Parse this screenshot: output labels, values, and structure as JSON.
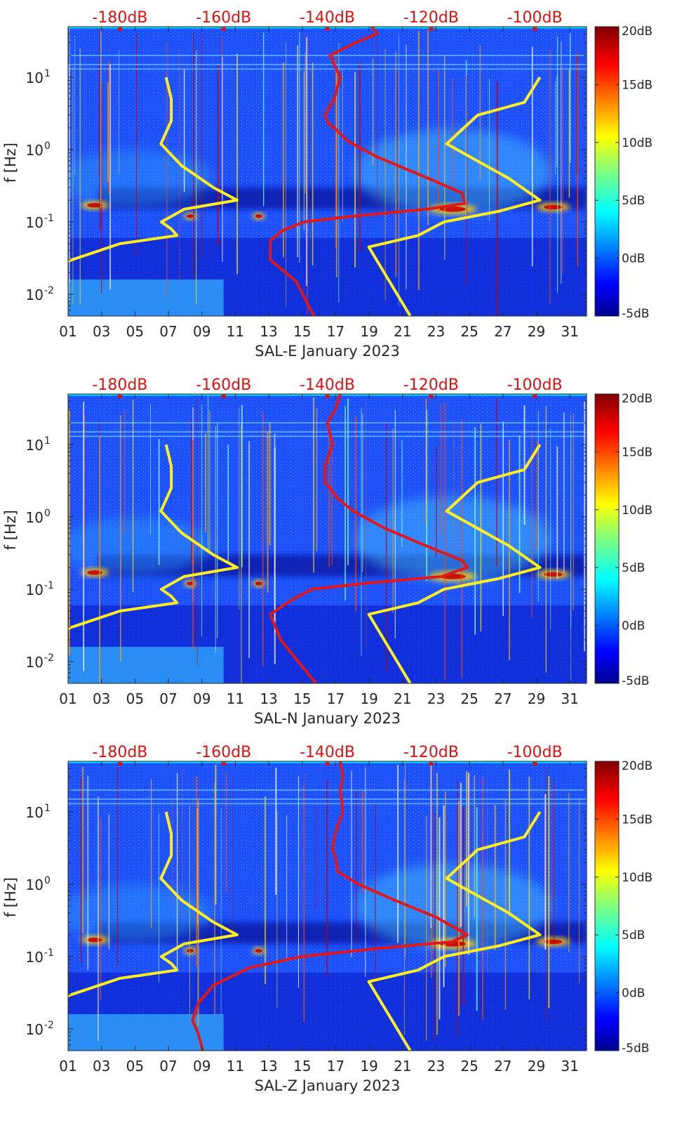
{
  "chart_data": [
    {
      "type": "heatmap",
      "title": "",
      "xlabel": "SAL-E January 2023",
      "ylabel": "f [Hz]",
      "x_ticks": [
        "01",
        "03",
        "05",
        "07",
        "09",
        "11",
        "13",
        "15",
        "17",
        "19",
        "21",
        "23",
        "25",
        "27",
        "29",
        "31"
      ],
      "x_range_days": [
        1,
        32
      ],
      "y_scale": "log",
      "y_range_hz": [
        0.005,
        50
      ],
      "y_ticks": [
        {
          "value": 0.01,
          "base": "10",
          "exp": "-2"
        },
        {
          "value": 0.1,
          "base": "10",
          "exp": "-1"
        },
        {
          "value": 1,
          "base": "10",
          "exp": "0"
        },
        {
          "value": 10,
          "base": "10",
          "exp": "1"
        }
      ],
      "top_axis_labels": [
        "-180dB",
        "-160dB",
        "-140dB",
        "-120dB",
        "-100dB"
      ],
      "top_axis_values_db": [
        -180,
        -160,
        -140,
        -120,
        -100
      ],
      "colorbar": {
        "labels": [
          "20dB",
          "15dB",
          "10dB",
          "5dB",
          "0dB",
          "-5dB"
        ],
        "range_db": [
          -5,
          20
        ],
        "colormap": "jet"
      },
      "series": [
        {
          "name": "yellow-low-model",
          "color": "#ffee22",
          "points_db_hz": [
            [
              -171.1,
              10
            ],
            [
              -170.1,
              5
            ],
            [
              -170.1,
              2.5
            ],
            [
              -172.1,
              1.2
            ],
            [
              -168.1,
              0.6
            ],
            [
              -162,
              0.3
            ],
            [
              -157.4,
              0.2
            ],
            [
              -167.6,
              0.15
            ],
            [
              -172,
              0.1
            ],
            [
              -170.1,
              0.08
            ],
            [
              -169,
              0.065
            ],
            [
              -180,
              0.05
            ],
            [
              -192.5,
              0.025
            ],
            [
              -193,
              0.012
            ],
            [
              -192.2,
              0.005
            ]
          ]
        },
        {
          "name": "yellow-high-model",
          "color": "#ffee22",
          "points_db_hz": [
            [
              -99,
              10
            ],
            [
              -102,
              4.5
            ],
            [
              -111,
              3
            ],
            [
              -117,
              1.2
            ],
            [
              -105,
              0.4
            ],
            [
              -99,
              0.2
            ],
            [
              -107,
              0.14
            ],
            [
              -117.5,
              0.1
            ],
            [
              -122.5,
              0.065
            ],
            [
              -132,
              0.045
            ],
            [
              -124,
              0.005
            ]
          ]
        },
        {
          "name": "red-station-median",
          "color": "#e0181a",
          "points_db_hz": [
            [
              -131.4,
              50
            ],
            [
              -130.4,
              40
            ],
            [
              -134.6,
              30
            ],
            [
              -139.5,
              20
            ],
            [
              -137.5,
              10
            ],
            [
              -138.7,
              5
            ],
            [
              -140.5,
              3
            ],
            [
              -139.8,
              2.3
            ],
            [
              -138,
              1.8
            ],
            [
              -136,
              1.3
            ],
            [
              -130.5,
              0.8
            ],
            [
              -120.5,
              0.4
            ],
            [
              -114,
              0.25
            ],
            [
              -113.5,
              0.18
            ],
            [
              -120.8,
              0.15
            ],
            [
              -135,
              0.12
            ],
            [
              -144.5,
              0.1
            ],
            [
              -148.8,
              0.075
            ],
            [
              -151,
              0.055
            ],
            [
              -151,
              0.03
            ],
            [
              -146,
              0.015
            ],
            [
              -142.6,
              0.005
            ]
          ]
        }
      ]
    },
    {
      "type": "heatmap",
      "title": "",
      "xlabel": "SAL-N January 2023",
      "ylabel": "f [Hz]",
      "x_ticks": [
        "01",
        "03",
        "05",
        "07",
        "09",
        "11",
        "13",
        "15",
        "17",
        "19",
        "21",
        "23",
        "25",
        "27",
        "29",
        "31"
      ],
      "x_range_days": [
        1,
        32
      ],
      "y_scale": "log",
      "y_range_hz": [
        0.005,
        50
      ],
      "y_ticks": [
        {
          "value": 0.01,
          "base": "10",
          "exp": "-2"
        },
        {
          "value": 0.1,
          "base": "10",
          "exp": "-1"
        },
        {
          "value": 1,
          "base": "10",
          "exp": "0"
        },
        {
          "value": 10,
          "base": "10",
          "exp": "1"
        }
      ],
      "top_axis_labels": [
        "-180dB",
        "-160dB",
        "-140dB",
        "-120dB",
        "-100dB"
      ],
      "top_axis_values_db": [
        -180,
        -160,
        -140,
        -120,
        -100
      ],
      "colorbar": {
        "labels": [
          "20dB",
          "15dB",
          "10dB",
          "5dB",
          "0dB",
          "-5dB"
        ],
        "range_db": [
          -5,
          20
        ],
        "colormap": "jet"
      },
      "series": [
        {
          "name": "yellow-low-model",
          "color": "#ffee22",
          "points_db_hz": [
            [
              -171.1,
              10
            ],
            [
              -170.1,
              5
            ],
            [
              -170.1,
              2.5
            ],
            [
              -172.1,
              1.2
            ],
            [
              -168.1,
              0.6
            ],
            [
              -162,
              0.3
            ],
            [
              -157.4,
              0.2
            ],
            [
              -167.6,
              0.15
            ],
            [
              -172,
              0.1
            ],
            [
              -170.1,
              0.08
            ],
            [
              -169,
              0.065
            ],
            [
              -180,
              0.05
            ],
            [
              -192.5,
              0.025
            ],
            [
              -193,
              0.012
            ],
            [
              -192.2,
              0.005
            ]
          ]
        },
        {
          "name": "yellow-high-model",
          "color": "#ffee22",
          "points_db_hz": [
            [
              -99,
              10
            ],
            [
              -102,
              4.5
            ],
            [
              -111,
              3
            ],
            [
              -117,
              1.2
            ],
            [
              -105,
              0.4
            ],
            [
              -99,
              0.2
            ],
            [
              -107,
              0.14
            ],
            [
              -117.5,
              0.1
            ],
            [
              -122.5,
              0.065
            ],
            [
              -132,
              0.045
            ],
            [
              -124,
              0.005
            ]
          ]
        },
        {
          "name": "red-station-median",
          "color": "#e0181a",
          "points_db_hz": [
            [
              -137.5,
              50
            ],
            [
              -138.5,
              30
            ],
            [
              -140,
              20
            ],
            [
              -139,
              10
            ],
            [
              -140.5,
              5
            ],
            [
              -140.5,
              3
            ],
            [
              -139.5,
              2.5
            ],
            [
              -138,
              1.8
            ],
            [
              -135,
              1.2
            ],
            [
              -129,
              0.7
            ],
            [
              -121,
              0.4
            ],
            [
              -114,
              0.25
            ],
            [
              -113,
              0.2
            ],
            [
              -118,
              0.15
            ],
            [
              -133,
              0.12
            ],
            [
              -143,
              0.1
            ],
            [
              -147,
              0.07
            ],
            [
              -151,
              0.045
            ],
            [
              -149,
              0.02
            ],
            [
              -142.2,
              0.005
            ]
          ]
        }
      ]
    },
    {
      "type": "heatmap",
      "title": "",
      "xlabel": "SAL-Z January 2023",
      "ylabel": "f [Hz]",
      "x_ticks": [
        "01",
        "03",
        "05",
        "07",
        "09",
        "11",
        "13",
        "15",
        "17",
        "19",
        "21",
        "23",
        "25",
        "27",
        "29",
        "31"
      ],
      "x_range_days": [
        1,
        32
      ],
      "y_scale": "log",
      "y_range_hz": [
        0.005,
        50
      ],
      "y_ticks": [
        {
          "value": 0.01,
          "base": "10",
          "exp": "-2"
        },
        {
          "value": 0.1,
          "base": "10",
          "exp": "-1"
        },
        {
          "value": 1,
          "base": "10",
          "exp": "0"
        },
        {
          "value": 10,
          "base": "10",
          "exp": "1"
        }
      ],
      "top_axis_labels": [
        "-180dB",
        "-160dB",
        "-140dB",
        "-120dB",
        "-100dB"
      ],
      "top_axis_values_db": [
        -180,
        -160,
        -140,
        -120,
        -100
      ],
      "colorbar": {
        "labels": [
          "20dB",
          "15dB",
          "10dB",
          "5dB",
          "0dB",
          "-5dB"
        ],
        "range_db": [
          -5,
          20
        ],
        "colormap": "jet"
      },
      "series": [
        {
          "name": "yellow-low-model",
          "color": "#ffee22",
          "points_db_hz": [
            [
              -171.1,
              10
            ],
            [
              -170.1,
              5
            ],
            [
              -170.1,
              2.5
            ],
            [
              -172.1,
              1.2
            ],
            [
              -168.1,
              0.6
            ],
            [
              -162,
              0.3
            ],
            [
              -157.4,
              0.2
            ],
            [
              -167.6,
              0.15
            ],
            [
              -172,
              0.1
            ],
            [
              -170.1,
              0.08
            ],
            [
              -169,
              0.065
            ],
            [
              -180,
              0.05
            ],
            [
              -192.5,
              0.025
            ],
            [
              -193,
              0.012
            ],
            [
              -192.2,
              0.005
            ]
          ]
        },
        {
          "name": "yellow-high-model",
          "color": "#ffee22",
          "points_db_hz": [
            [
              -99,
              10
            ],
            [
              -102,
              4.5
            ],
            [
              -111,
              3
            ],
            [
              -117,
              1.2
            ],
            [
              -105,
              0.4
            ],
            [
              -99,
              0.2
            ],
            [
              -107,
              0.14
            ],
            [
              -117.5,
              0.1
            ],
            [
              -122.5,
              0.065
            ],
            [
              -132,
              0.045
            ],
            [
              -124,
              0.005
            ]
          ]
        },
        {
          "name": "red-station-median",
          "color": "#e0181a",
          "points_db_hz": [
            [
              -137.5,
              50
            ],
            [
              -137,
              30
            ],
            [
              -137.5,
              20
            ],
            [
              -137,
              10
            ],
            [
              -138.5,
              5
            ],
            [
              -139,
              3
            ],
            [
              -138.5,
              2.5
            ],
            [
              -138,
              1.5
            ],
            [
              -134,
              1
            ],
            [
              -127,
              0.6
            ],
            [
              -119,
              0.35
            ],
            [
              -113,
              0.2
            ],
            [
              -116,
              0.16
            ],
            [
              -130,
              0.13
            ],
            [
              -145,
              0.1
            ],
            [
              -155,
              0.07
            ],
            [
              -162,
              0.04
            ],
            [
              -165,
              0.022
            ],
            [
              -166,
              0.013
            ],
            [
              -165,
              0.009
            ],
            [
              -164,
              0.005
            ]
          ]
        }
      ]
    }
  ]
}
